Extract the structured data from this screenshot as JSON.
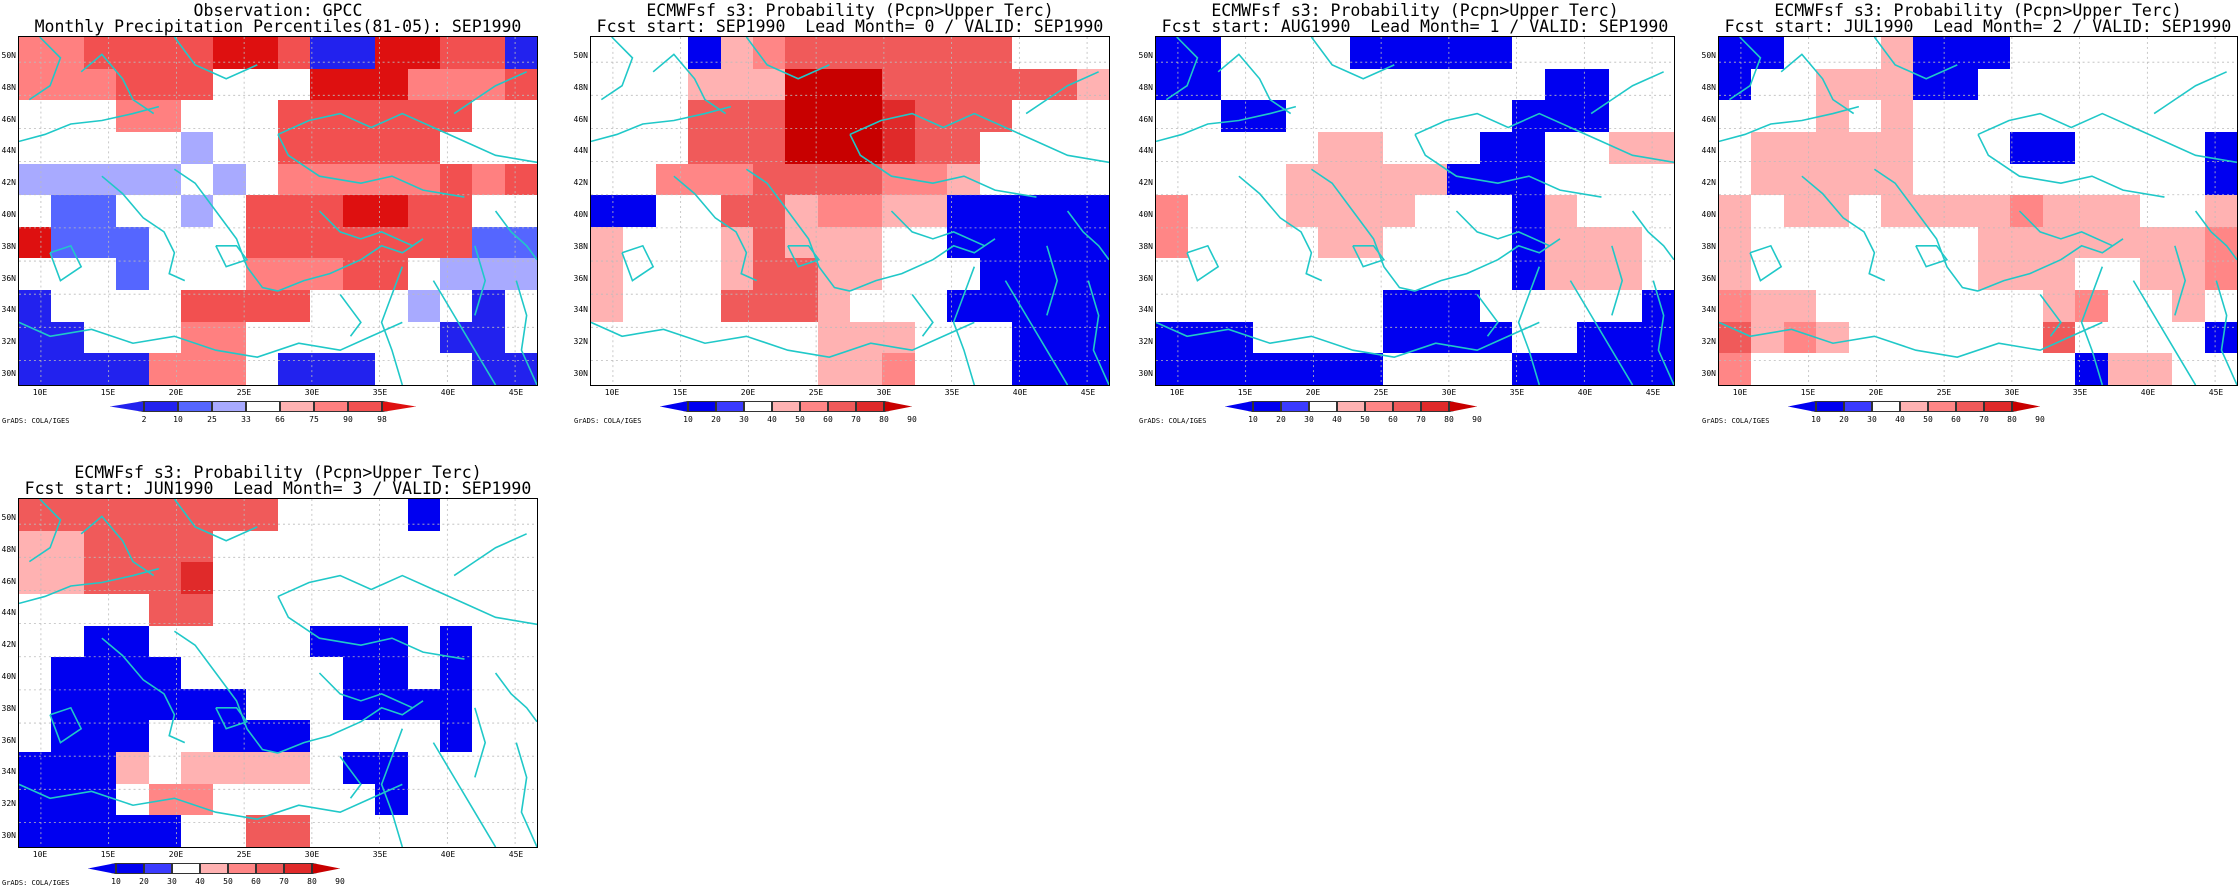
{
  "color_scale_obs": [
    "#2222ee",
    "#5566ff",
    "#a8aaff",
    "#ffffff",
    "#ffb2b2",
    "#ff8080",
    "#f25050",
    "#de1010"
  ],
  "color_scale_prob": [
    "#0000f0",
    "#3b3bff",
    "#ffffff",
    "#ffb2b2",
    "#ff8686",
    "#f05a5a",
    "#e02a2a",
    "#c80000"
  ],
  "map_axes": {
    "lat_labels": [
      "50N",
      "48N",
      "46N",
      "44N",
      "42N",
      "40N",
      "38N",
      "36N",
      "34N",
      "32N",
      "30N"
    ],
    "lon_labels": [
      "10E",
      "15E",
      "20E",
      "25E",
      "30E",
      "35E",
      "40E",
      "45E"
    ],
    "coast_color": "#20c8c8"
  },
  "grads_credit": "GrADS: COLA/IGES",
  "panels": [
    {
      "title_line1": "Observation: GPCC",
      "title_line2": "Monthly Precipitation Percentiles(81-05): SEP1990",
      "colorbar": {
        "kind": "obs",
        "labels": [
          "2",
          "10",
          "25",
          "33",
          "66",
          "75",
          "90",
          "98"
        ]
      },
      "grid": [
        "5566667760077660",
        "5556663337775556",
        "3335533366666633",
        "3333323366666333",
        "2222232355555656",
        "3113323666776633",
        "7111333666666611",
        "3331333555663222",
        "0333366663332303",
        "0033355333333003",
        "0000555300033300"
      ]
    },
    {
      "title_line1": "ECMWFsf s3: Probability (Pcpn>Upper Terc)",
      "title_line2": "Fcst start: SEP1990  Lead Month= 0 / VALID: SEP1990",
      "colorbar": {
        "kind": "prob",
        "labels": [
          "10",
          "20",
          "30",
          "40",
          "50",
          "60",
          "70",
          "80",
          "90"
        ]
      },
      "grid": [
        "2220345555555222",
        "2223337775555553",
        "2225557776555222",
        "2225557776552222",
        "2244455554432222",
        "0022553443300000",
        "3222353332200000",
        "3222355332220000",
        "3222555322200000",
        "2222222333222000",
        "2222222334222000"
      ]
    },
    {
      "title_line1": "ECMWFsf s3: Probability (Pcpn>Upper Terc)",
      "title_line2": "Fcst start: AUG1990  Lead Month= 1 / VALID: SEP1990",
      "colorbar": {
        "kind": "prob",
        "labels": [
          "10",
          "20",
          "30",
          "40",
          "50",
          "60",
          "70",
          "80",
          "90"
        ]
      },
      "grid": [
        "0022220000022222",
        "0022222222220022",
        "2200222222200022",
        "2222233222002233",
        "2222333330002222",
        "4222333322203222",
        "4222233222203332",
        "2222222222203332",
        "2222222000222220",
        "0002222000022000",
        "0000000222200000"
      ]
    },
    {
      "title_line1": "ECMWFsf s3: Probability (Pcpn>Upper Terc)",
      "title_line2": "Fcst start: JUL1990  Lead Month= 2 / VALID: SEP1990",
      "colorbar": {
        "kind": "prob",
        "labels": [
          "10",
          "20",
          "30",
          "40",
          "50",
          "60",
          "70",
          "80",
          "90"
        ]
      },
      "grid": [
        "0022230002222222",
        "0223330022222222",
        "2223232222222222",
        "2333332220022220",
        "2333332222222220",
        "3233233334333223",
        "3222222233333334",
        "3222222233322334",
        "4332222222342232",
        "5343222222522220",
        "4222222222203322"
      ]
    },
    {
      "title_line1": "ECMWFsf s3: Probability (Pcpn>Upper Terc)",
      "title_line2": "Fcst start: JUN1990  Lead Month= 3 / VALID: SEP1990",
      "colorbar": {
        "kind": "prob",
        "labels": [
          "10",
          "20",
          "30",
          "40",
          "50",
          "60",
          "70",
          "80",
          "90"
        ]
      },
      "grid": [
        "5555555522220222",
        "3355552222222222",
        "3355562222222222",
        "2222552222222222",
        "2200222220002022",
        "2000022222002022",
        "2000000222000022",
        "2000220002222022",
        "0003233332002222",
        "0002442222202222",
        "0000022552222222"
      ]
    }
  ]
}
